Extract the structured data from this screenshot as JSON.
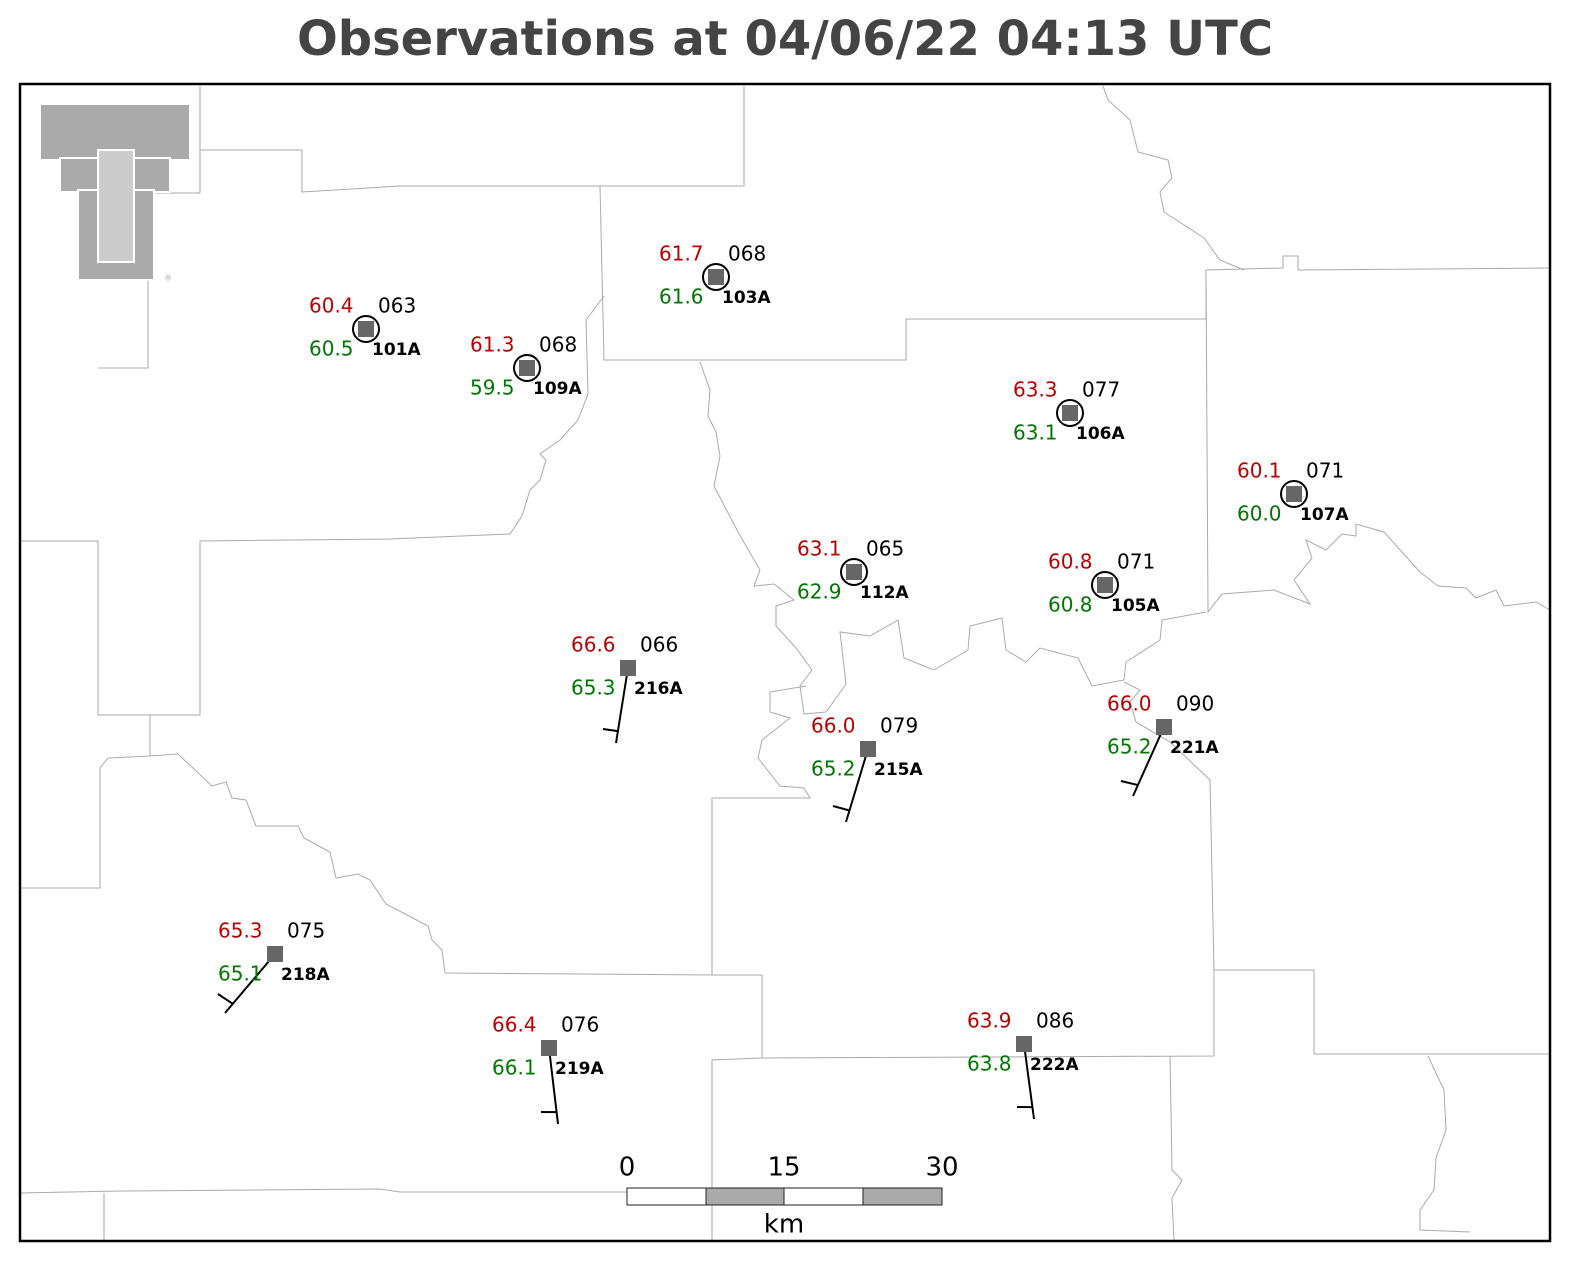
{
  "title": "Observations at 04/06/22 04:13 UTC",
  "stations": [
    {
      "id": "101A",
      "temperature": "60.4",
      "dewpoint": "60.5",
      "pressure": "063"
    },
    {
      "id": "109A",
      "temperature": "61.3",
      "dewpoint": "59.5",
      "pressure": "068"
    },
    {
      "id": "103A",
      "temperature": "61.7",
      "dewpoint": "61.6",
      "pressure": "068"
    },
    {
      "id": "106A",
      "temperature": "63.3",
      "dewpoint": "63.1",
      "pressure": "077"
    },
    {
      "id": "107A",
      "temperature": "60.1",
      "dewpoint": "60.0",
      "pressure": "071"
    },
    {
      "id": "112A",
      "temperature": "63.1",
      "dewpoint": "62.9",
      "pressure": "065"
    },
    {
      "id": "105A",
      "temperature": "60.8",
      "dewpoint": "60.8",
      "pressure": "071"
    },
    {
      "id": "216A",
      "temperature": "66.6",
      "dewpoint": "65.3",
      "pressure": "066"
    },
    {
      "id": "215A",
      "temperature": "66.0",
      "dewpoint": "65.2",
      "pressure": "079"
    },
    {
      "id": "221A",
      "temperature": "66.0",
      "dewpoint": "65.2",
      "pressure": "090"
    },
    {
      "id": "218A",
      "temperature": "65.3",
      "dewpoint": "65.1",
      "pressure": "075"
    },
    {
      "id": "219A",
      "temperature": "66.4",
      "dewpoint": "66.1",
      "pressure": "076"
    },
    {
      "id": "222A",
      "temperature": "63.9",
      "dewpoint": "63.8",
      "pressure": "086"
    }
  ],
  "scale_bar": {
    "labels": [
      "0",
      "15",
      "30"
    ],
    "unit": "km"
  }
}
